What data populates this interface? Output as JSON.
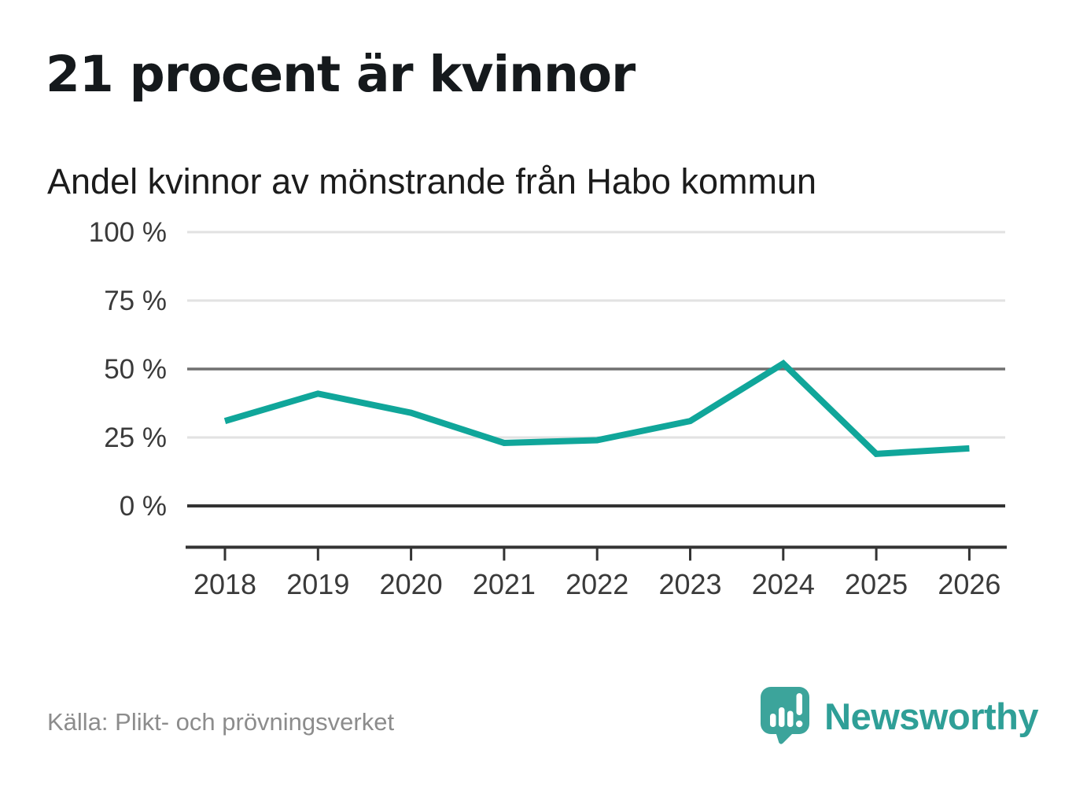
{
  "headline": "21 procent är kvinnor",
  "chart_data": {
    "type": "line",
    "title": "Andel kvinnor av mönstrande från Habo kommun",
    "categories": [
      "2018",
      "2019",
      "2020",
      "2021",
      "2022",
      "2023",
      "2024",
      "2025",
      "2026"
    ],
    "series": [
      {
        "name": "Andel kvinnor av mönstrande",
        "values": [
          31,
          41,
          34,
          23,
          24,
          31,
          52,
          19,
          21
        ]
      }
    ],
    "unit": "%",
    "ylim": [
      0,
      100
    ],
    "yticks": [
      0,
      25,
      50,
      75,
      100
    ],
    "ytick_suffix": " %",
    "grid": true,
    "legend_position": "none",
    "line_color": "#10a69a"
  },
  "footer": {
    "source": "Källa: Plikt- och prövningsverket",
    "brand": "Newsworthy"
  },
  "colors": {
    "accent": "#10a69a",
    "brand_teal": "#3ca49b",
    "grid_light": "#e2e2e2",
    "grid_mid": "#707070",
    "axis_dark": "#333333",
    "text_dark": "#1c1c1c",
    "tick_text": "#3a3a3a",
    "text_muted": "#8c8c8c"
  }
}
